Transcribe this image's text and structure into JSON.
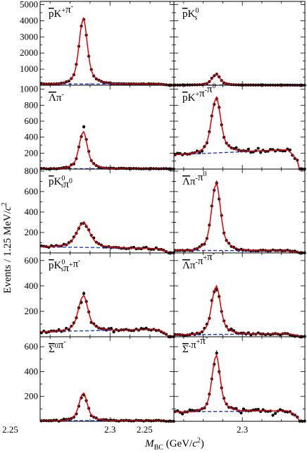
{
  "chart_data": {
    "type": "scatter",
    "layout": "5x2 panel grid, shared x-axis per column",
    "ylabel": "Events / 1.25 MeV/c²",
    "xlabel": "M_BC (GeV/c²)",
    "xlabel_parts": {
      "symbol": "M",
      "sub": "BC",
      "unit_open": " (GeV/",
      "unit_c": "c",
      "unit_sup": "2",
      "unit_close": ")"
    },
    "ylabel_parts": {
      "main": "Events / 1.25 MeV/",
      "c": "c",
      "sup": "2"
    },
    "xlim": [
      2.265,
      2.332
    ],
    "xticks": [
      "2.25",
      "2.3"
    ],
    "xtick_values": [
      2.25,
      2.3
    ],
    "peak_mass": 2.2865,
    "colors": {
      "fit": "#e00000",
      "background": "#1a3bd6",
      "points": "#000000",
      "axes": "#000000"
    },
    "series_styles": {
      "data": "black points with error bars",
      "fit": "solid red line",
      "background": "dashed blue line"
    },
    "panels": [
      {
        "id": "pKpi",
        "label_html": "p̅K⁺π⁻",
        "label_parts": [
          {
            "t": "p",
            "bar": true
          },
          {
            "t": "K"
          },
          {
            "t": "+",
            "sup": true
          },
          {
            "t": "π"
          },
          {
            "t": "-",
            "sup": true
          }
        ],
        "ylim": [
          0,
          5200
        ],
        "yticks": [
          1000,
          2000,
          3000,
          4000,
          5000
        ],
        "bkg": [
          80,
          70
        ],
        "peak": 3950,
        "width": 0.0019,
        "row": 0,
        "col": 0
      },
      {
        "id": "pKs",
        "label_parts": [
          {
            "t": "p",
            "bar": true
          },
          {
            "t": "K"
          },
          {
            "t": "0",
            "sup": true
          },
          {
            "t": "s",
            "sub": true
          }
        ],
        "ylim": [
          0,
          5200
        ],
        "yticks": [],
        "bkg": [
          12,
          10
        ],
        "peak": 650,
        "width": 0.0019,
        "row": 0,
        "col": 1
      },
      {
        "id": "Lpi",
        "label_parts": [
          {
            "t": "Λ",
            "bar": true
          },
          {
            "t": "π"
          },
          {
            "t": "-",
            "sup": true
          }
        ],
        "ylim": [
          0,
          1050
        ],
        "yticks": [
          200,
          400,
          600,
          800,
          1000
        ],
        "bkg": [
          5,
          5
        ],
        "peak": 450,
        "width": 0.0019,
        "row": 1,
        "col": 0
      },
      {
        "id": "pKpipi0",
        "label_parts": [
          {
            "t": "p",
            "bar": true
          },
          {
            "t": "K"
          },
          {
            "t": "+",
            "sup": true
          },
          {
            "t": "π"
          },
          {
            "t": "-",
            "sup": true
          },
          {
            "t": "π"
          },
          {
            "t": "0",
            "sup": true
          }
        ],
        "ylim": [
          0,
          1050
        ],
        "yticks": [],
        "bkg": [
          180,
          250
        ],
        "peak": 670,
        "width": 0.0022,
        "row": 1,
        "col": 1
      },
      {
        "id": "pKspi0",
        "label_parts": [
          {
            "t": "p",
            "bar": true
          },
          {
            "t": "K"
          },
          {
            "t": "0",
            "sup": true
          },
          {
            "t": "s",
            "sub": true
          },
          {
            "t": "π"
          },
          {
            "t": "0",
            "sup": true
          }
        ],
        "ylim": [
          0,
          820
        ],
        "yticks": [
          200,
          400,
          600,
          800
        ],
        "bkg": [
          60,
          40
        ],
        "peak": 235,
        "width": 0.003,
        "row": 2,
        "col": 0
      },
      {
        "id": "Lpipi0",
        "label_parts": [
          {
            "t": "Λ",
            "bar": true
          },
          {
            "t": "π"
          },
          {
            "t": "-",
            "sup": true
          },
          {
            "t": "π"
          },
          {
            "t": "0",
            "sup": true
          }
        ],
        "ylim": [
          0,
          820
        ],
        "yticks": [],
        "bkg": [
          25,
          20
        ],
        "peak": 640,
        "width": 0.0021,
        "row": 2,
        "col": 1
      },
      {
        "id": "pKspipi",
        "label_parts": [
          {
            "t": "p",
            "bar": true
          },
          {
            "t": "K"
          },
          {
            "t": "0",
            "sup": true
          },
          {
            "t": "s",
            "sub": true
          },
          {
            "t": "π"
          },
          {
            "t": "+",
            "sup": true
          },
          {
            "t": "π"
          },
          {
            "t": "-",
            "sup": true
          }
        ],
        "ylim": [
          0,
          660
        ],
        "yticks": [
          200,
          400,
          600
        ],
        "bkg": [
          40,
          60
        ],
        "peak": 270,
        "width": 0.0022,
        "row": 3,
        "col": 0
      },
      {
        "id": "Lpipipi",
        "label_parts": [
          {
            "t": "Λ",
            "bar": true
          },
          {
            "t": "π"
          },
          {
            "t": "-",
            "sup": true
          },
          {
            "t": "π"
          },
          {
            "t": "+",
            "sup": true
          },
          {
            "t": "π"
          },
          {
            "t": "-",
            "sup": true
          }
        ],
        "ylim": [
          0,
          660
        ],
        "yticks": [],
        "bkg": [
          15,
          25
        ],
        "peak": 370,
        "width": 0.0021,
        "row": 3,
        "col": 1
      },
      {
        "id": "S0pi",
        "label_parts": [
          {
            "t": "Σ",
            "bar": true
          },
          {
            "t": "0",
            "sup": true
          },
          {
            "t": "π"
          },
          {
            "t": "-",
            "sup": true
          }
        ],
        "ylim": [
          0,
          680
        ],
        "yticks": [
          200,
          400,
          600
        ],
        "bkg": [
          5,
          5
        ],
        "peak": 215,
        "width": 0.0019,
        "row": 4,
        "col": 0
      },
      {
        "id": "Smpipi",
        "label_parts": [
          {
            "t": "Σ",
            "bar": true
          },
          {
            "t": "-",
            "sup": true
          },
          {
            "t": "π"
          },
          {
            "t": "+",
            "sup": true
          },
          {
            "t": "π"
          },
          {
            "t": "-",
            "sup": true
          }
        ],
        "ylim": [
          0,
          680
        ],
        "yticks": [],
        "bkg": [
          75,
          85
        ],
        "peak": 440,
        "width": 0.0019,
        "row": 4,
        "col": 1
      }
    ]
  }
}
